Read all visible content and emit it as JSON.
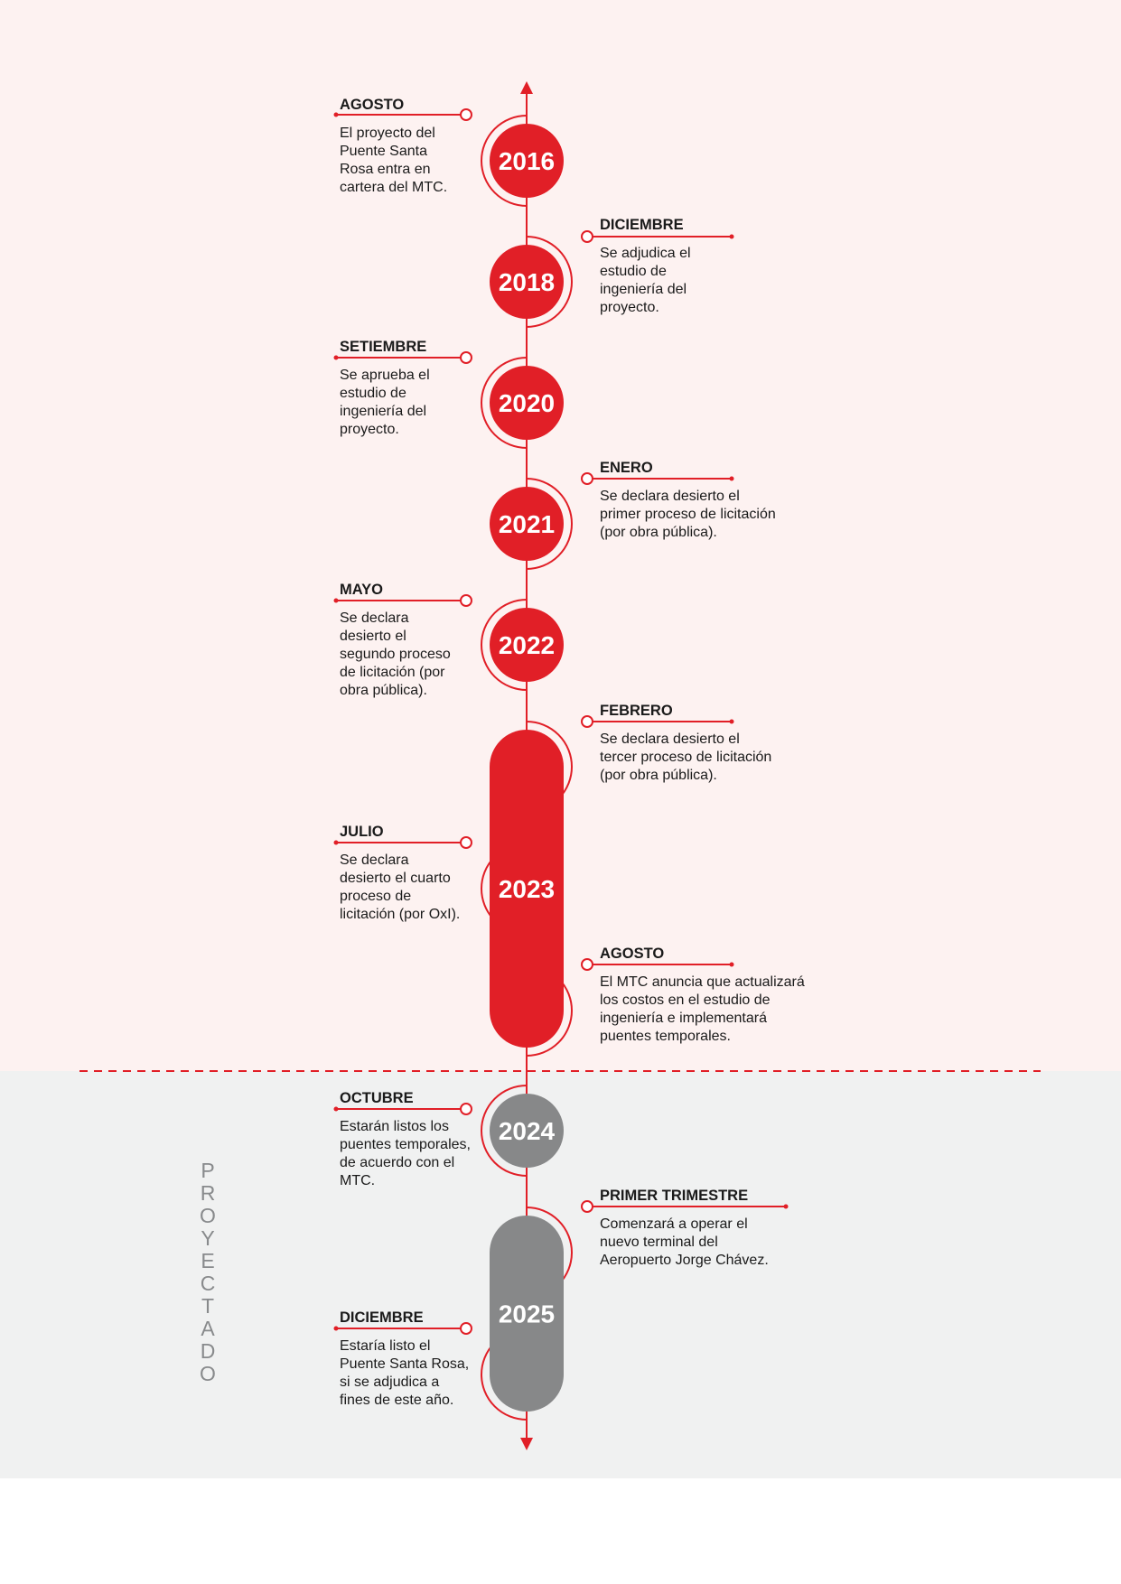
{
  "colors": {
    "red": "#e11f27",
    "gray": "#878889",
    "dark": "#1a1a1a",
    "top_bg": "#fdf2f1",
    "bottom_bg": "#f0f1f1"
  },
  "projected_label": "PROYECTADO",
  "years": [
    {
      "label": "2016",
      "color": "red"
    },
    {
      "label": "2018",
      "color": "red"
    },
    {
      "label": "2020",
      "color": "red"
    },
    {
      "label": "2021",
      "color": "red"
    },
    {
      "label": "2022",
      "color": "red"
    },
    {
      "label": "2023",
      "color": "red"
    },
    {
      "label": "2024",
      "color": "gray"
    },
    {
      "label": "2025",
      "color": "gray"
    }
  ],
  "events": [
    {
      "month": "AGOSTO",
      "lines": [
        "El proyecto del",
        "Puente Santa",
        "Rosa entra en",
        "cartera del MTC."
      ]
    },
    {
      "month": "DICIEMBRE",
      "lines": [
        "Se adjudica el",
        "estudio de",
        "ingeniería del",
        "proyecto."
      ]
    },
    {
      "month": "SETIEMBRE",
      "lines": [
        "Se aprueba el",
        "estudio de",
        "ingeniería del",
        "proyecto."
      ]
    },
    {
      "month": "ENERO",
      "lines": [
        "Se declara desierto el",
        "primer proceso de licitación",
        "(por obra pública)."
      ]
    },
    {
      "month": "MAYO",
      "lines": [
        "Se declara",
        "desierto el",
        "segundo proceso",
        "de licitación (por",
        "obra pública)."
      ]
    },
    {
      "month": "FEBRERO",
      "lines": [
        "Se declara desierto el",
        "tercer proceso de licitación",
        "(por obra pública)."
      ]
    },
    {
      "month": "JULIO",
      "lines": [
        "Se declara",
        "desierto el cuarto",
        "proceso de",
        "licitación (por OxI)."
      ]
    },
    {
      "month": "AGOSTO",
      "lines": [
        "El MTC anuncia que actualizará",
        "los costos en el estudio de",
        "ingeniería e implementará",
        "puentes temporales."
      ]
    },
    {
      "month": "OCTUBRE",
      "lines": [
        "Estarán listos los",
        "puentes temporales,",
        "de acuerdo con el",
        "MTC."
      ]
    },
    {
      "month": "PRIMER TRIMESTRE",
      "lines": [
        "Comenzará a operar el",
        "nuevo terminal del",
        "Aeropuerto Jorge Chávez."
      ]
    },
    {
      "month": "DICIEMBRE",
      "lines": [
        "Estaría listo el",
        "Puente Santa Rosa,",
        "si se adjudica a",
        "fines de este año."
      ]
    }
  ]
}
